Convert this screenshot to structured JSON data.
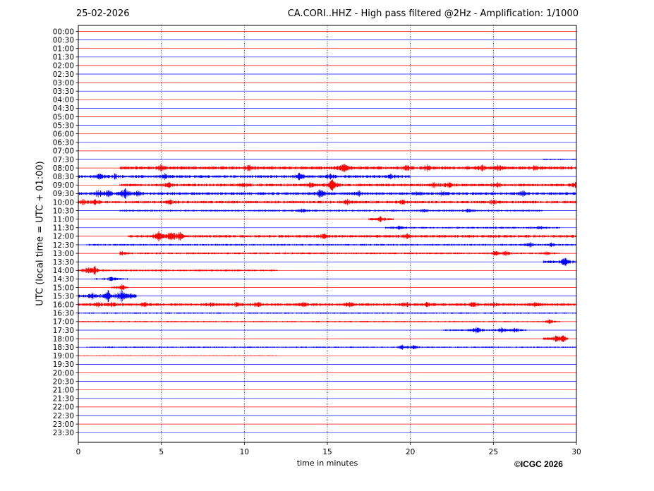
{
  "header": {
    "date": "25-02-2026",
    "title": "CA.CORI..HHZ - High pass filtered @2Hz - Amplification: 1/1000"
  },
  "footer": {
    "copyright": "©ICGC 2026"
  },
  "chart_data": {
    "type": "line",
    "xlabel": "time in minutes",
    "ylabel": "UTC (local time = UTC + 01:00)",
    "xlim": [
      0,
      30
    ],
    "xticks": [
      0,
      5,
      10,
      15,
      20,
      25,
      30
    ],
    "xtick_labels": [
      "0",
      "5",
      "10",
      "15",
      "20",
      "25",
      "30"
    ],
    "grid": "vertical dotted at x ticks",
    "colors": {
      "even_rows": "#ff0000",
      "odd_rows": "#0000ff"
    },
    "rows": [
      "00:00",
      "00:30",
      "01:00",
      "01:30",
      "02:00",
      "02:30",
      "03:00",
      "03:30",
      "04:00",
      "04:30",
      "05:00",
      "05:30",
      "06:00",
      "06:30",
      "07:00",
      "07:30",
      "08:00",
      "08:30",
      "09:00",
      "09:30",
      "10:00",
      "10:30",
      "11:00",
      "11:30",
      "12:00",
      "12:30",
      "13:00",
      "13:30",
      "14:00",
      "14:30",
      "15:00",
      "15:30",
      "16:00",
      "16:30",
      "17:00",
      "17:30",
      "18:00",
      "18:30",
      "19:00",
      "19:30",
      "20:00",
      "20:30",
      "21:00",
      "21:30",
      "22:00",
      "22:30",
      "23:00",
      "23:30"
    ],
    "events": [
      {
        "row": "07:30",
        "x": [
          28,
          30
        ],
        "amp": 0.15
      },
      {
        "row": "08:00",
        "x": [
          2.5,
          30
        ],
        "amp": 0.35,
        "bursts": [
          [
            5,
            0.6
          ],
          [
            10.3,
            0.7
          ],
          [
            16,
            0.9
          ],
          [
            19.8,
            0.6
          ],
          [
            21,
            0.6
          ],
          [
            24.3,
            0.5
          ],
          [
            25.3,
            0.6
          ],
          [
            27.5,
            0.4
          ]
        ]
      },
      {
        "row": "08:30",
        "x": [
          0,
          20
        ],
        "amp": 0.3,
        "bursts": [
          [
            1.3,
            0.6
          ],
          [
            2.2,
            0.5
          ],
          [
            5.2,
            0.5
          ],
          [
            13.3,
            0.7
          ],
          [
            15.2,
            0.6
          ],
          [
            18.8,
            0.5
          ]
        ]
      },
      {
        "row": "09:00",
        "x": [
          2.5,
          30
        ],
        "amp": 0.3,
        "bursts": [
          [
            5.5,
            0.5
          ],
          [
            10,
            0.5
          ],
          [
            14,
            0.5
          ],
          [
            15.3,
            1.2
          ],
          [
            21.4,
            0.5
          ],
          [
            22.3,
            0.5
          ],
          [
            25.2,
            0.6
          ],
          [
            29.9,
            0.5
          ]
        ]
      },
      {
        "row": "09:30",
        "x": [
          0,
          30
        ],
        "amp": 0.3,
        "bursts": [
          [
            1.2,
            0.8
          ],
          [
            1.8,
            0.7
          ],
          [
            2.8,
            1.2
          ],
          [
            3.6,
            0.6
          ],
          [
            14.6,
            1.0
          ],
          [
            16.9,
            0.5
          ],
          [
            20.5,
            0.5
          ],
          [
            21.9,
            0.5
          ],
          [
            26.8,
            0.5
          ]
        ]
      },
      {
        "row": "10:00",
        "x": [
          0,
          30
        ],
        "amp": 0.3,
        "bursts": [
          [
            0.3,
            0.5
          ],
          [
            1,
            0.5
          ],
          [
            5.5,
            0.5
          ],
          [
            16.2,
            0.5
          ],
          [
            19.5,
            0.5
          ],
          [
            25,
            0.5
          ]
        ]
      },
      {
        "row": "10:30",
        "x": [
          2.5,
          28
        ],
        "amp": 0.2,
        "bursts": [
          [
            13.5,
            0.4
          ],
          [
            20.8,
            0.4
          ],
          [
            23.5,
            0.4
          ]
        ]
      },
      {
        "row": "11:00",
        "x": [
          17.5,
          19
        ],
        "amp": 0.25,
        "bursts": [
          [
            18.2,
            0.5
          ]
        ]
      },
      {
        "row": "11:30",
        "x": [
          18.5,
          29
        ],
        "amp": 0.2,
        "bursts": [
          [
            19.3,
            0.4
          ],
          [
            27.8,
            0.4
          ]
        ]
      },
      {
        "row": "12:00",
        "x": [
          3,
          30
        ],
        "amp": 0.3,
        "bursts": [
          [
            4.8,
            1.2
          ],
          [
            5.6,
            1.0
          ],
          [
            6.1,
            0.8
          ],
          [
            14.8,
            0.5
          ],
          [
            19.8,
            0.4
          ]
        ]
      },
      {
        "row": "12:30",
        "x": [
          0.5,
          30
        ],
        "amp": 0.2,
        "bursts": [
          [
            27.2,
            0.5
          ],
          [
            28.5,
            0.4
          ]
        ]
      },
      {
        "row": "13:00",
        "x": [
          2.5,
          29
        ],
        "amp": 0.2,
        "bursts": [
          [
            2.6,
            0.5
          ],
          [
            25.2,
            0.6
          ],
          [
            25.8,
            0.5
          ],
          [
            28.2,
            0.3
          ]
        ]
      },
      {
        "row": "13:30",
        "x": [
          28,
          30
        ],
        "amp": 0.3,
        "bursts": [
          [
            29.3,
            0.9
          ]
        ]
      },
      {
        "row": "14:00",
        "x": [
          0,
          12
        ],
        "amp": 0.2,
        "bursts": [
          [
            0.5,
            0.8
          ],
          [
            1,
            1.0
          ]
        ]
      },
      {
        "row": "14:30",
        "x": [
          1,
          3
        ],
        "amp": 0.2,
        "bursts": [
          [
            2,
            0.5
          ]
        ]
      },
      {
        "row": "15:00",
        "x": [
          2,
          3
        ],
        "amp": 0.2,
        "bursts": [
          [
            2.6,
            0.6
          ]
        ]
      },
      {
        "row": "15:30",
        "x": [
          0,
          3.5
        ],
        "amp": 0.3,
        "bursts": [
          [
            0.8,
            0.6
          ],
          [
            1.8,
            1.1
          ],
          [
            2.6,
            1.3
          ],
          [
            3.2,
            0.5
          ]
        ]
      },
      {
        "row": "16:00",
        "x": [
          0,
          30
        ],
        "amp": 0.3,
        "bursts": [
          [
            1.2,
            0.5
          ],
          [
            2,
            0.5
          ],
          [
            4,
            0.5
          ],
          [
            8,
            0.4
          ],
          [
            9.5,
            0.4
          ],
          [
            10.8,
            0.5
          ],
          [
            13.6,
            0.5
          ],
          [
            16.3,
            0.5
          ],
          [
            19.7,
            0.5
          ],
          [
            21,
            0.4
          ],
          [
            23.8,
            0.5
          ],
          [
            25,
            0.4
          ],
          [
            27.5,
            0.4
          ]
        ]
      },
      {
        "row": "16:30",
        "x": [
          0,
          30
        ],
        "amp": 0.15
      },
      {
        "row": "17:00",
        "x": [
          0,
          29
        ],
        "amp": 0.15,
        "bursts": [
          [
            28.4,
            0.4
          ]
        ]
      },
      {
        "row": "17:30",
        "x": [
          22,
          27
        ],
        "amp": 0.2,
        "bursts": [
          [
            24,
            0.8
          ],
          [
            25.5,
            0.6
          ],
          [
            26.3,
            0.5
          ]
        ]
      },
      {
        "row": "18:00",
        "x": [
          28,
          29.5
        ],
        "amp": 0.3,
        "bursts": [
          [
            28.8,
            0.5
          ],
          [
            29.2,
            0.7
          ]
        ]
      },
      {
        "row": "18:30",
        "x": [
          0.5,
          30
        ],
        "amp": 0.15,
        "bursts": [
          [
            19.5,
            0.5
          ],
          [
            20.2,
            0.4
          ]
        ]
      },
      {
        "row": "19:00",
        "x": [
          0,
          12
        ],
        "amp": 0.1
      }
    ]
  }
}
